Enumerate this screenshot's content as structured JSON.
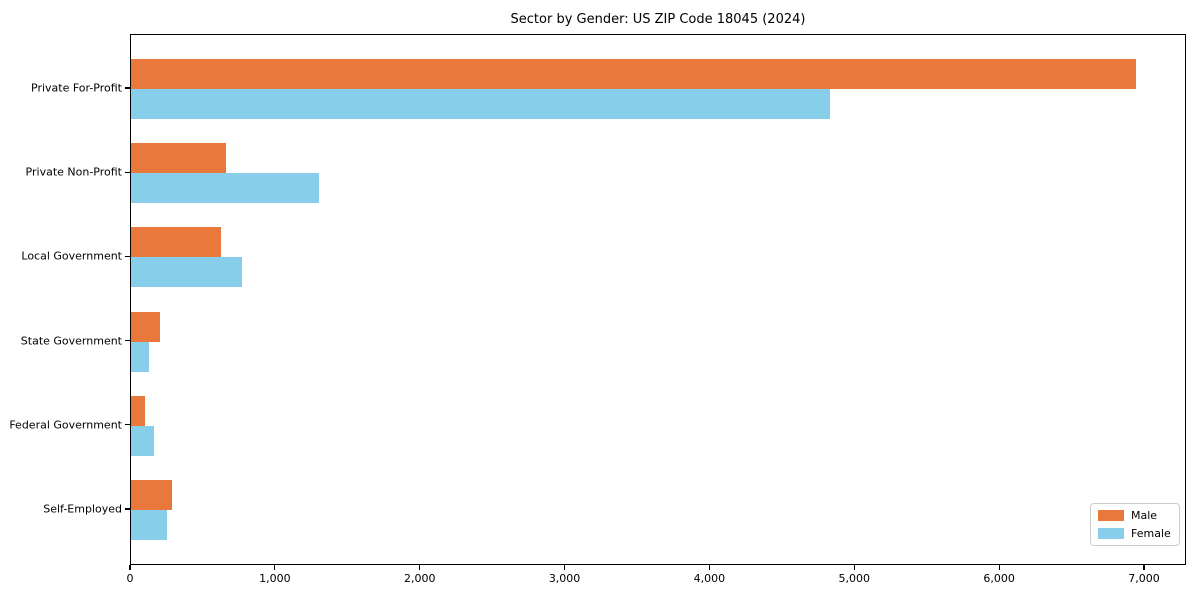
{
  "chart_data": {
    "type": "bar",
    "orientation": "horizontal",
    "title": "Sector by Gender: US ZIP Code 18045 (2024)",
    "categories": [
      "Private For-Profit",
      "Private Non-Profit",
      "Local Government",
      "State Government",
      "Federal Government",
      "Self-Employed"
    ],
    "series": [
      {
        "name": "Male",
        "color": "#e8783c",
        "values": [
          6938,
          656,
          621,
          200,
          97,
          283
        ]
      },
      {
        "name": "Female",
        "color": "#87ceeb",
        "values": [
          4825,
          1298,
          766,
          124,
          157,
          249
        ]
      }
    ],
    "xlabel": "",
    "ylabel": "",
    "xlim": [
      0,
      7290
    ],
    "xticks": [
      0,
      1000,
      2000,
      3000,
      4000,
      5000,
      6000,
      7000
    ],
    "xtick_labels": [
      "0",
      "1,000",
      "2,000",
      "3,000",
      "4,000",
      "5,000",
      "6,000",
      "7,000"
    ],
    "grid": false,
    "legend": {
      "position": "lower right",
      "entries": [
        "Male",
        "Female"
      ]
    }
  }
}
